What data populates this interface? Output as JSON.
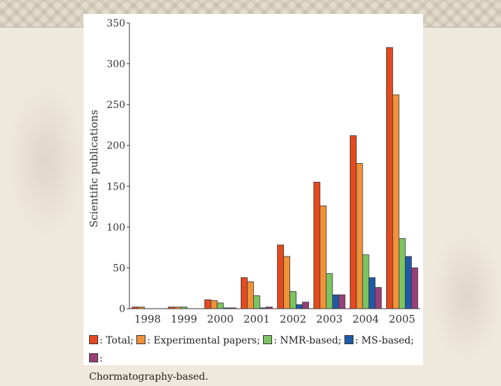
{
  "chart_data": {
    "type": "bar",
    "categories": [
      "1998",
      "1999",
      "2000",
      "2001",
      "2002",
      "2003",
      "2004",
      "2005"
    ],
    "series": [
      {
        "name": "Total",
        "color": "#e44a1f",
        "values": [
          2,
          2,
          11,
          38,
          78,
          155,
          212,
          320
        ]
      },
      {
        "name": "Experimental papers",
        "color": "#f0923a",
        "values": [
          2,
          2,
          10,
          33,
          64,
          126,
          178,
          262
        ]
      },
      {
        "name": "NMR-based",
        "color": "#7bc462",
        "values": [
          0,
          2,
          7,
          16,
          21,
          43,
          66,
          86
        ]
      },
      {
        "name": "MS-based",
        "color": "#1f5aa8",
        "values": [
          0,
          0,
          1,
          1,
          5,
          17,
          38,
          64
        ]
      },
      {
        "name": "Chromatography-based",
        "color": "#9a3f7a",
        "values": [
          0,
          0,
          1,
          2,
          8,
          17,
          26,
          50
        ]
      }
    ],
    "ylabel": "Scientific publications",
    "xlabel": "",
    "ylim": [
      0,
      350
    ],
    "yticks": [
      0,
      50,
      100,
      150,
      200,
      250,
      300,
      350
    ],
    "legend_labels": [
      ": Total;",
      ": Experimental papers;",
      ": NMR-based;",
      ": MS-based;",
      ":"
    ],
    "legend_tail": "Chormatography-based."
  }
}
